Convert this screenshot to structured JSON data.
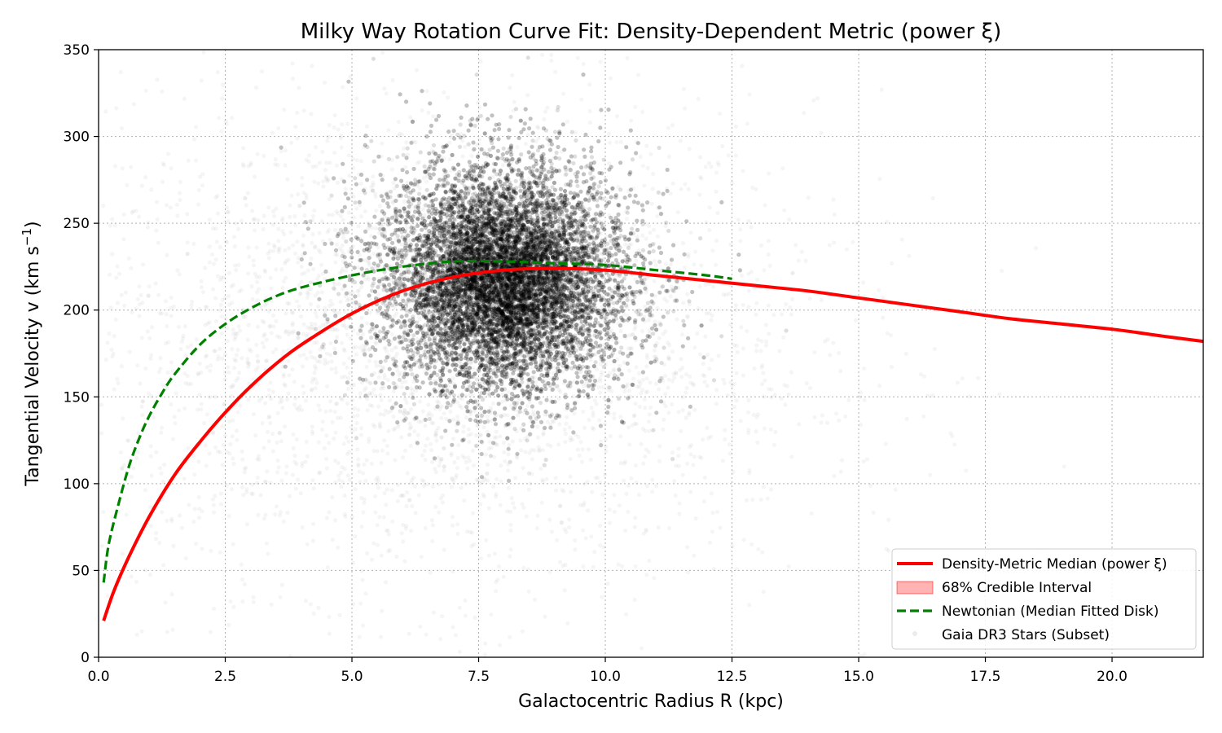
{
  "chart_data": {
    "type": "line",
    "title": "Milky Way Rotation Curve Fit: Density-Dependent Metric (power ξ)",
    "xlabel": "Galactocentric Radius R (kpc)",
    "ylabel": {
      "main": "Tangential Velocity v (km s",
      "sup": "−1",
      "tail": ")"
    },
    "xlim": [
      0,
      21.8
    ],
    "ylim": [
      0,
      350
    ],
    "xticks": [
      0.0,
      2.5,
      5.0,
      7.5,
      10.0,
      12.5,
      15.0,
      17.5,
      20.0
    ],
    "xtick_labels": [
      "0.0",
      "2.5",
      "5.0",
      "7.5",
      "10.0",
      "12.5",
      "15.0",
      "17.5",
      "20.0"
    ],
    "yticks": [
      0,
      50,
      100,
      150,
      200,
      250,
      300,
      350
    ],
    "ytick_labels": [
      "0",
      "50",
      "100",
      "150",
      "200",
      "250",
      "300",
      "350"
    ],
    "grid": true,
    "legend_position": "lower-right",
    "series": [
      {
        "name": "Density-Metric Median (power ξ)",
        "style": "solid",
        "color": "#ff0000",
        "x": [
          0.1,
          0.3,
          0.6,
          1.0,
          1.5,
          2.0,
          2.5,
          3.0,
          3.5,
          4.0,
          5.0,
          6.0,
          7.0,
          8.0,
          9.0,
          10.0,
          11.0,
          12.0,
          13.0,
          14.0,
          15.0,
          16.0,
          17.0,
          18.0,
          19.0,
          20.0,
          21.0,
          21.8
        ],
        "y": [
          21,
          38,
          58,
          81,
          105,
          124,
          141,
          156,
          169,
          180,
          198,
          211,
          219,
          223,
          224,
          223,
          220,
          217,
          214,
          211,
          207,
          203,
          199,
          195,
          192,
          189,
          185,
          182
        ]
      },
      {
        "name": "68% Credible Interval",
        "style": "band",
        "color": "#ff9999"
      },
      {
        "name": "Newtonian (Median Fitted Disk)",
        "style": "dashed",
        "color": "#008000",
        "x": [
          0.1,
          0.2,
          0.4,
          0.6,
          0.8,
          1.0,
          1.25,
          1.5,
          2.0,
          2.5,
          3.0,
          3.5,
          4.0,
          5.0,
          6.0,
          7.0,
          8.0,
          9.0,
          10.0,
          11.0,
          12.0,
          12.5
        ],
        "y": [
          43,
          65,
          89,
          110,
          126,
          139,
          152,
          163,
          180,
          192,
          201,
          208,
          213,
          220,
          225,
          228,
          228,
          227,
          226,
          223,
          220,
          218
        ]
      },
      {
        "name": "Gaia DR3 Stars (Subset)",
        "style": "points",
        "color": "#000000",
        "cluster_center": [
          8.0,
          220
        ],
        "cluster_spread": [
          1.3,
          35
        ],
        "halo_center": [
          6.5,
          180
        ],
        "halo_spread": [
          3.8,
          70
        ]
      }
    ]
  }
}
